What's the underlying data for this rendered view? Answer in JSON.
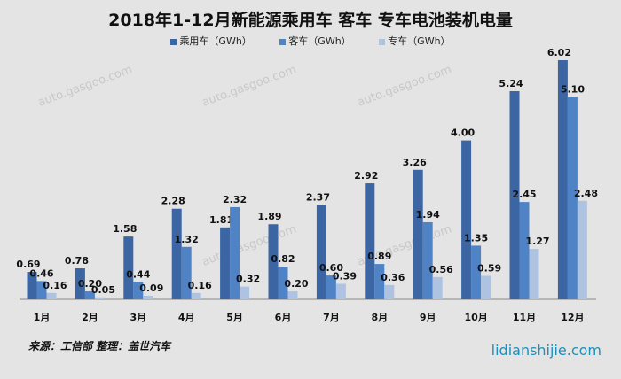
{
  "chart_data": {
    "type": "bar",
    "title": "2018年1-12月新能源乘用车 客车 专车电池装机电量",
    "categories": [
      "1月",
      "2月",
      "3月",
      "4月",
      "5月",
      "6月",
      "7月",
      "8月",
      "9月",
      "10月",
      "11月",
      "12月"
    ],
    "series": [
      {
        "name": "乘用车（GWh）",
        "color": "#3c66a3",
        "values": [
          0.69,
          0.78,
          1.58,
          2.28,
          1.81,
          1.89,
          2.37,
          2.92,
          3.26,
          4.0,
          5.24,
          6.02
        ]
      },
      {
        "name": "客车（GWh）",
        "color": "#4f83c6",
        "values": [
          0.46,
          0.2,
          0.44,
          1.32,
          2.32,
          0.82,
          0.6,
          0.89,
          1.94,
          1.35,
          2.45,
          5.1
        ]
      },
      {
        "name": "专车（GWh）",
        "color": "#aec3e2",
        "values": [
          0.16,
          0.05,
          0.09,
          0.16,
          0.32,
          0.2,
          0.39,
          0.36,
          0.56,
          0.59,
          1.27,
          2.48
        ]
      }
    ],
    "xlabel": "",
    "ylabel": "",
    "ylim": [
      0,
      6.02
    ],
    "grid": false,
    "legend": "top"
  },
  "footer": {
    "source": "来源：工信部 整理：盖世汽车",
    "site": "lidianshijie.com"
  },
  "watermark": "auto.gasgoo.com"
}
